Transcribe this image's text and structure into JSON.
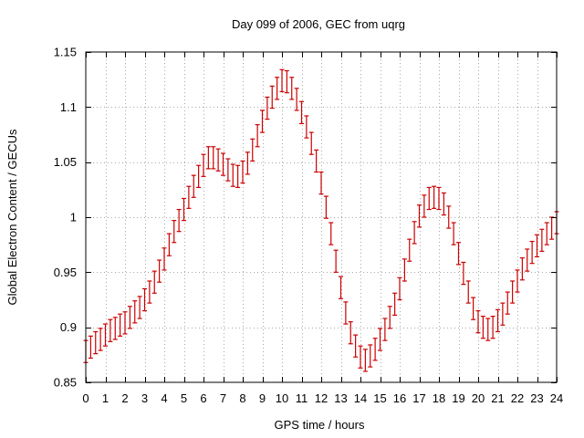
{
  "chart_data": {
    "type": "scatter",
    "title": "Day 099 of 2006, GEC from uqrg",
    "xlabel": "GPS time / hours",
    "ylabel": "Global Electron Content / GECUs",
    "xlim": [
      0,
      24
    ],
    "ylim": [
      0.85,
      1.15
    ],
    "xticks": [
      "0",
      "1",
      "2",
      "3",
      "4",
      "5",
      "6",
      "7",
      "8",
      "9",
      "10",
      "11",
      "12",
      "13",
      "14",
      "15",
      "16",
      "17",
      "18",
      "19",
      "20",
      "21",
      "22",
      "23",
      "24"
    ],
    "yticks": [
      "0.85",
      "0.9",
      "0.95",
      "1",
      "1.05",
      "1.1",
      "1.15"
    ],
    "grid": true,
    "legend": "none",
    "series_color": "#cc0000",
    "error": 0.01,
    "series": [
      {
        "x": [
          0,
          0.25,
          0.5,
          0.75,
          1,
          1.25,
          1.5,
          1.75,
          2,
          2.25,
          2.5,
          2.75,
          3,
          3.25,
          3.5,
          3.75,
          4,
          4.25,
          4.5,
          4.75,
          5,
          5.25,
          5.5,
          5.75,
          6,
          6.25,
          6.5,
          6.75,
          7,
          7.25,
          7.5,
          7.75,
          8,
          8.25,
          8.5,
          8.75,
          9,
          9.25,
          9.5,
          9.75,
          10,
          10.25,
          10.5,
          10.75,
          11,
          11.25,
          11.5,
          11.75,
          12,
          12.25,
          12.5,
          12.75,
          13,
          13.25,
          13.5,
          13.75,
          14,
          14.25,
          14.5,
          14.75,
          15,
          15.25,
          15.5,
          15.75,
          16,
          16.25,
          16.5,
          16.75,
          17,
          17.25,
          17.5,
          17.75,
          18,
          18.25,
          18.5,
          18.75,
          19,
          19.25,
          19.5,
          19.75,
          20,
          20.25,
          20.5,
          20.75,
          21,
          21.25,
          21.5,
          21.75,
          22,
          22.25,
          22.5,
          22.75,
          23,
          23.25,
          23.5,
          23.75,
          24
        ],
        "y": [
          0.878,
          0.882,
          0.886,
          0.889,
          0.893,
          0.897,
          0.899,
          0.902,
          0.904,
          0.909,
          0.914,
          0.918,
          0.925,
          0.932,
          0.941,
          0.951,
          0.962,
          0.975,
          0.987,
          0.997,
          1.007,
          1.018,
          1.028,
          1.037,
          1.047,
          1.054,
          1.054,
          1.052,
          1.048,
          1.043,
          1.038,
          1.037,
          1.041,
          1.049,
          1.061,
          1.074,
          1.087,
          1.099,
          1.109,
          1.117,
          1.124,
          1.123,
          1.117,
          1.107,
          1.095,
          1.082,
          1.067,
          1.051,
          1.031,
          1.009,
          0.985,
          0.96,
          0.936,
          0.913,
          0.895,
          0.883,
          0.873,
          0.87,
          0.874,
          0.88,
          0.889,
          0.898,
          0.909,
          0.921,
          0.935,
          0.952,
          0.97,
          0.986,
          1.001,
          1.01,
          1.017,
          1.018,
          1.017,
          1.012,
          1.0,
          0.985,
          0.967,
          0.949,
          0.932,
          0.917,
          0.905,
          0.9,
          0.898,
          0.9,
          0.906,
          0.912,
          0.922,
          0.932,
          0.942,
          0.953,
          0.961,
          0.968,
          0.974,
          0.979,
          0.985,
          0.99,
          0.995
        ]
      }
    ]
  }
}
